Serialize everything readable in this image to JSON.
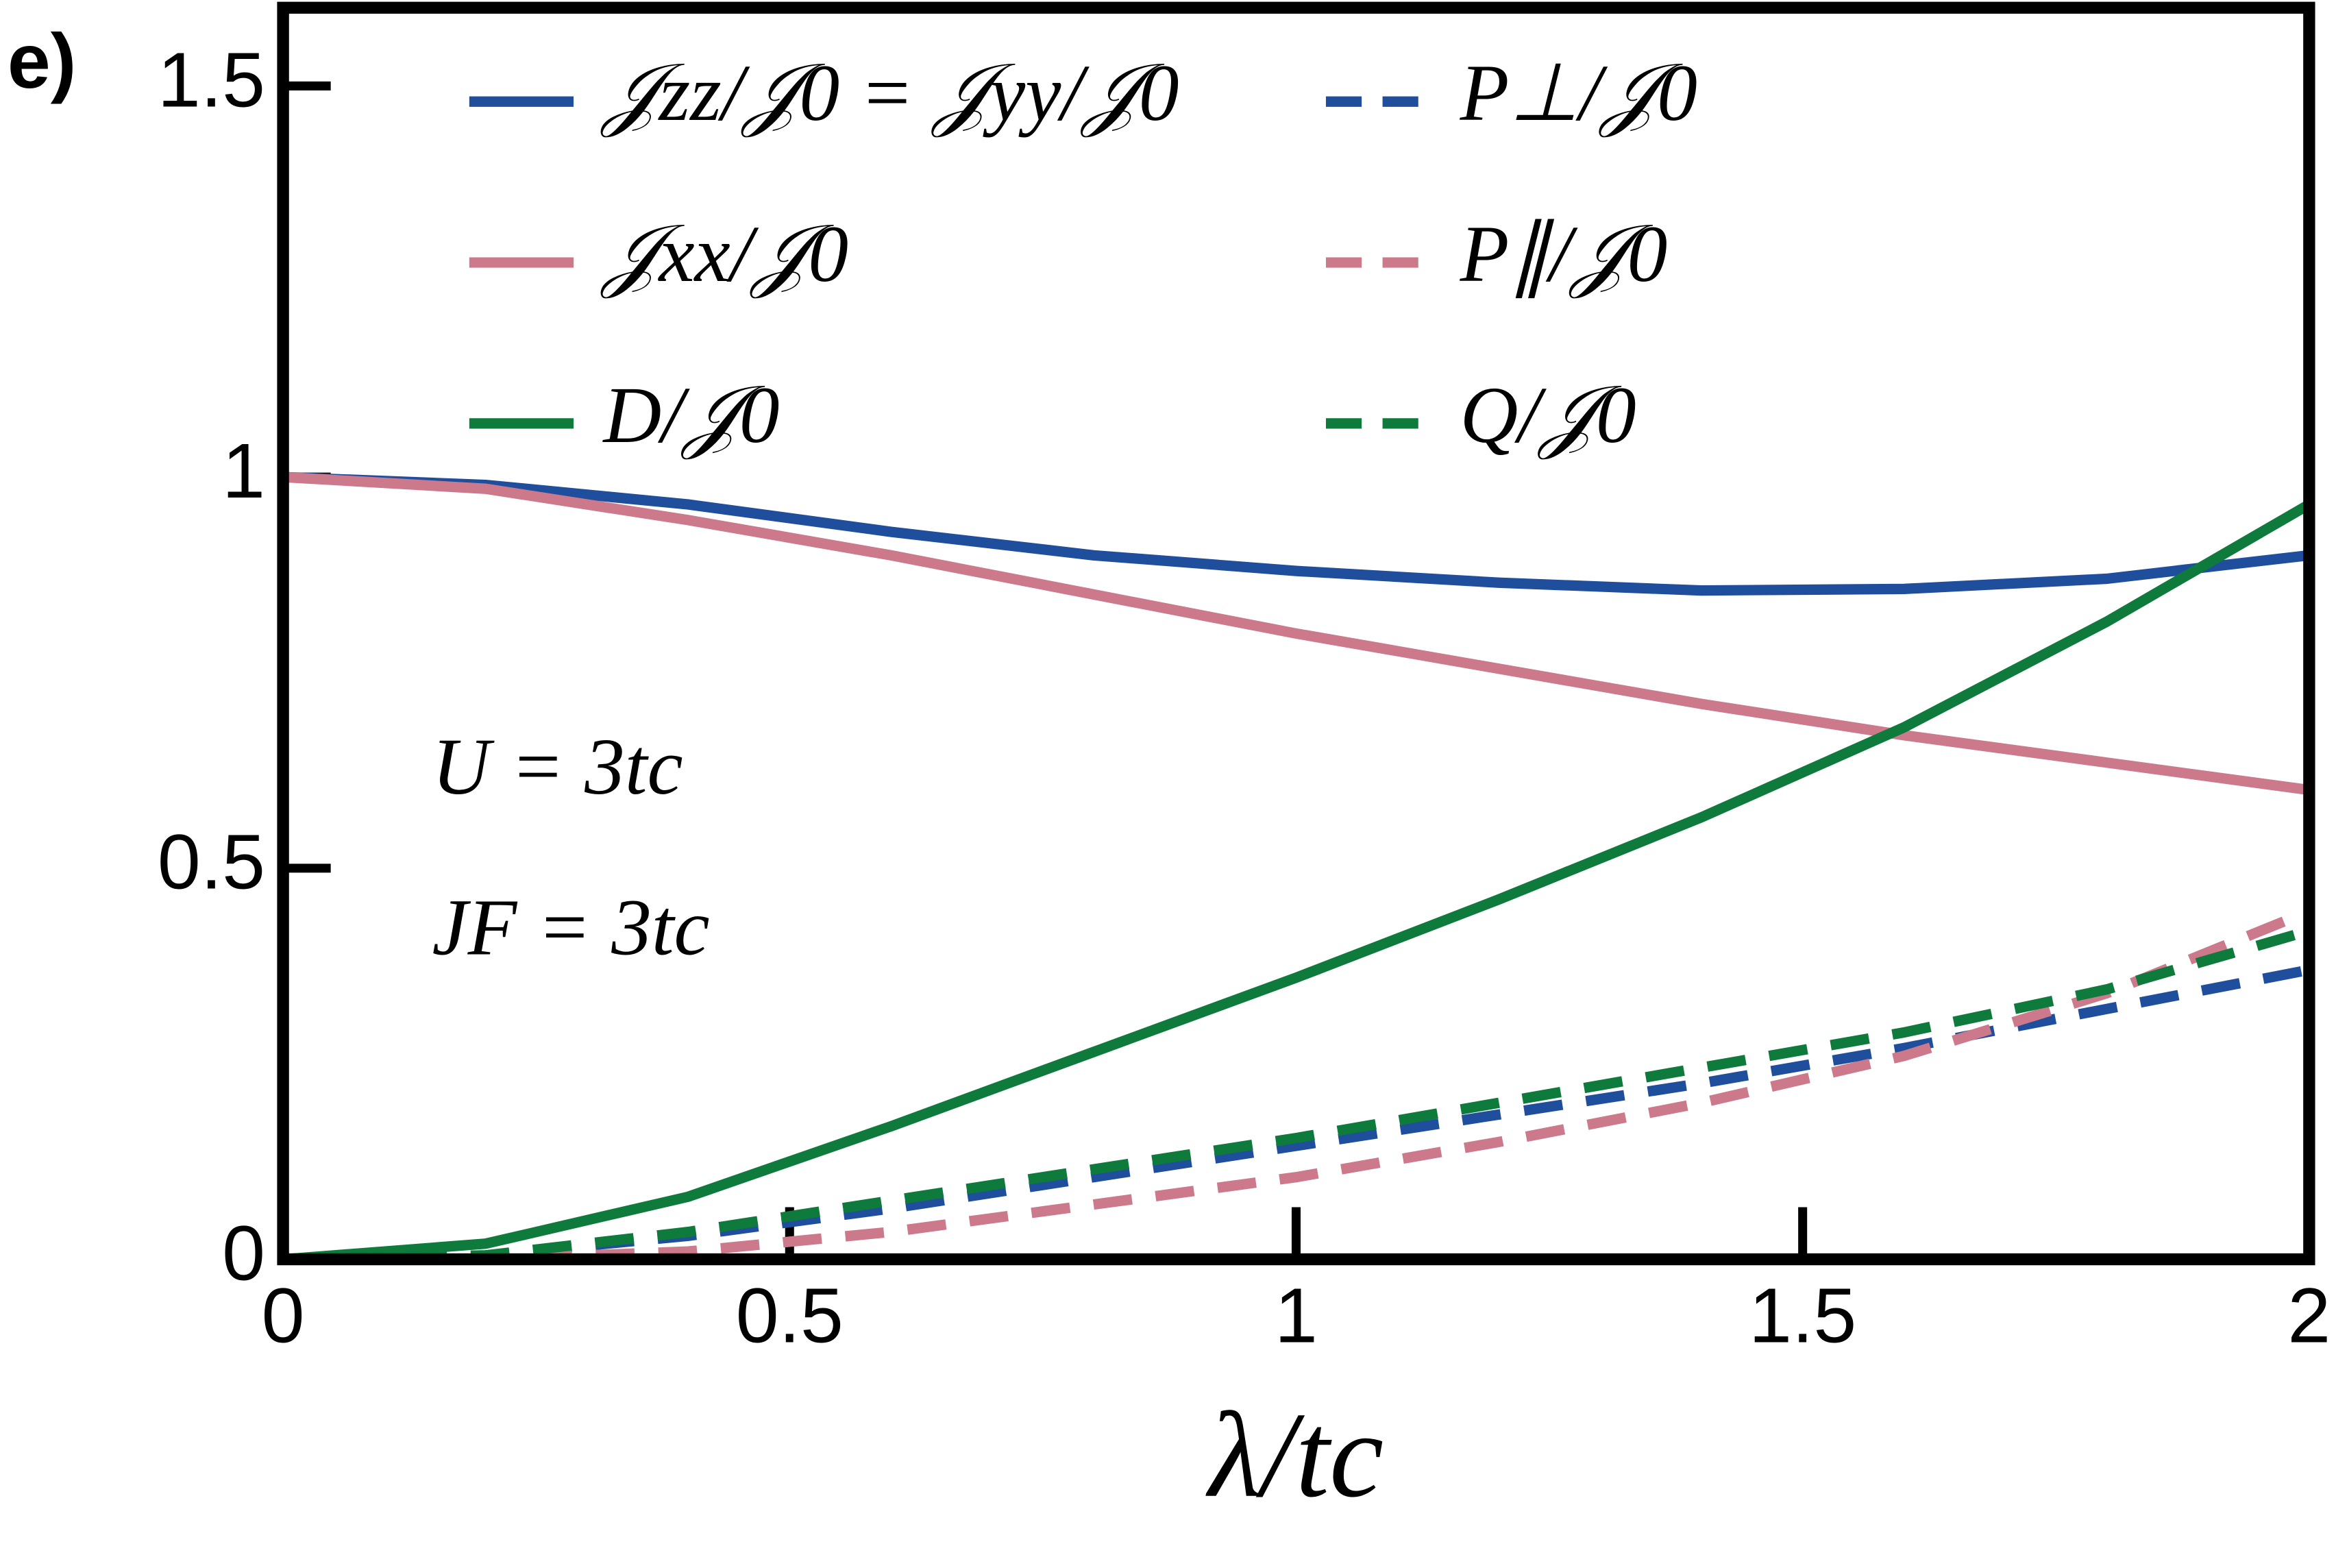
{
  "chart_data": {
    "type": "line",
    "panel_label": "e)",
    "x_label": "λ/tc",
    "annotations": [
      "U = 3tc",
      "JF = 3tc"
    ],
    "x": [
      0,
      0.2,
      0.4,
      0.6,
      0.8,
      1.0,
      1.2,
      1.4,
      1.6,
      1.8,
      2.0
    ],
    "series": [
      {
        "name": "𝒥zz/𝒥0 = 𝒥yy/𝒥0",
        "color": "#1f4e9c",
        "style": "solid",
        "values": [
          1,
          0.99,
          0.965,
          0.93,
          0.9,
          0.88,
          0.865,
          0.855,
          0.857,
          0.87,
          0.9
        ]
      },
      {
        "name": "𝒥xx/𝒥0",
        "color": "#cc7a8b",
        "style": "solid",
        "values": [
          1,
          0.985,
          0.945,
          0.9,
          0.85,
          0.8,
          0.755,
          0.71,
          0.67,
          0.635,
          0.6
        ]
      },
      {
        "name": "D/𝒥0",
        "color": "#0e7a3c",
        "style": "solid",
        "values": [
          0,
          0.02,
          0.08,
          0.17,
          0.265,
          0.36,
          0.46,
          0.565,
          0.68,
          0.815,
          0.965
        ]
      },
      {
        "name": "P⊥/𝒥0",
        "color": "#1f4e9c",
        "style": "dashed",
        "values": [
          0,
          0.005,
          0.03,
          0.065,
          0.105,
          0.145,
          0.185,
          0.225,
          0.27,
          0.32,
          0.37
        ]
      },
      {
        "name": "P∥/𝒥0",
        "color": "#cc7a8b",
        "style": "dashed",
        "values": [
          0,
          0,
          0.01,
          0.035,
          0.07,
          0.105,
          0.15,
          0.2,
          0.26,
          0.34,
          0.445
        ]
      },
      {
        "name": "Q/𝒥0",
        "color": "#0e7a3c",
        "style": "dashed",
        "values": [
          0,
          0.005,
          0.035,
          0.075,
          0.115,
          0.155,
          0.2,
          0.245,
          0.29,
          0.345,
          0.42
        ]
      }
    ],
    "xlim": [
      0,
      2
    ],
    "ylim": [
      0,
      1.6
    ],
    "xticks": [
      0,
      0.5,
      1,
      1.5,
      2
    ],
    "yticks": [
      0,
      0.5,
      1,
      1.5
    ]
  }
}
